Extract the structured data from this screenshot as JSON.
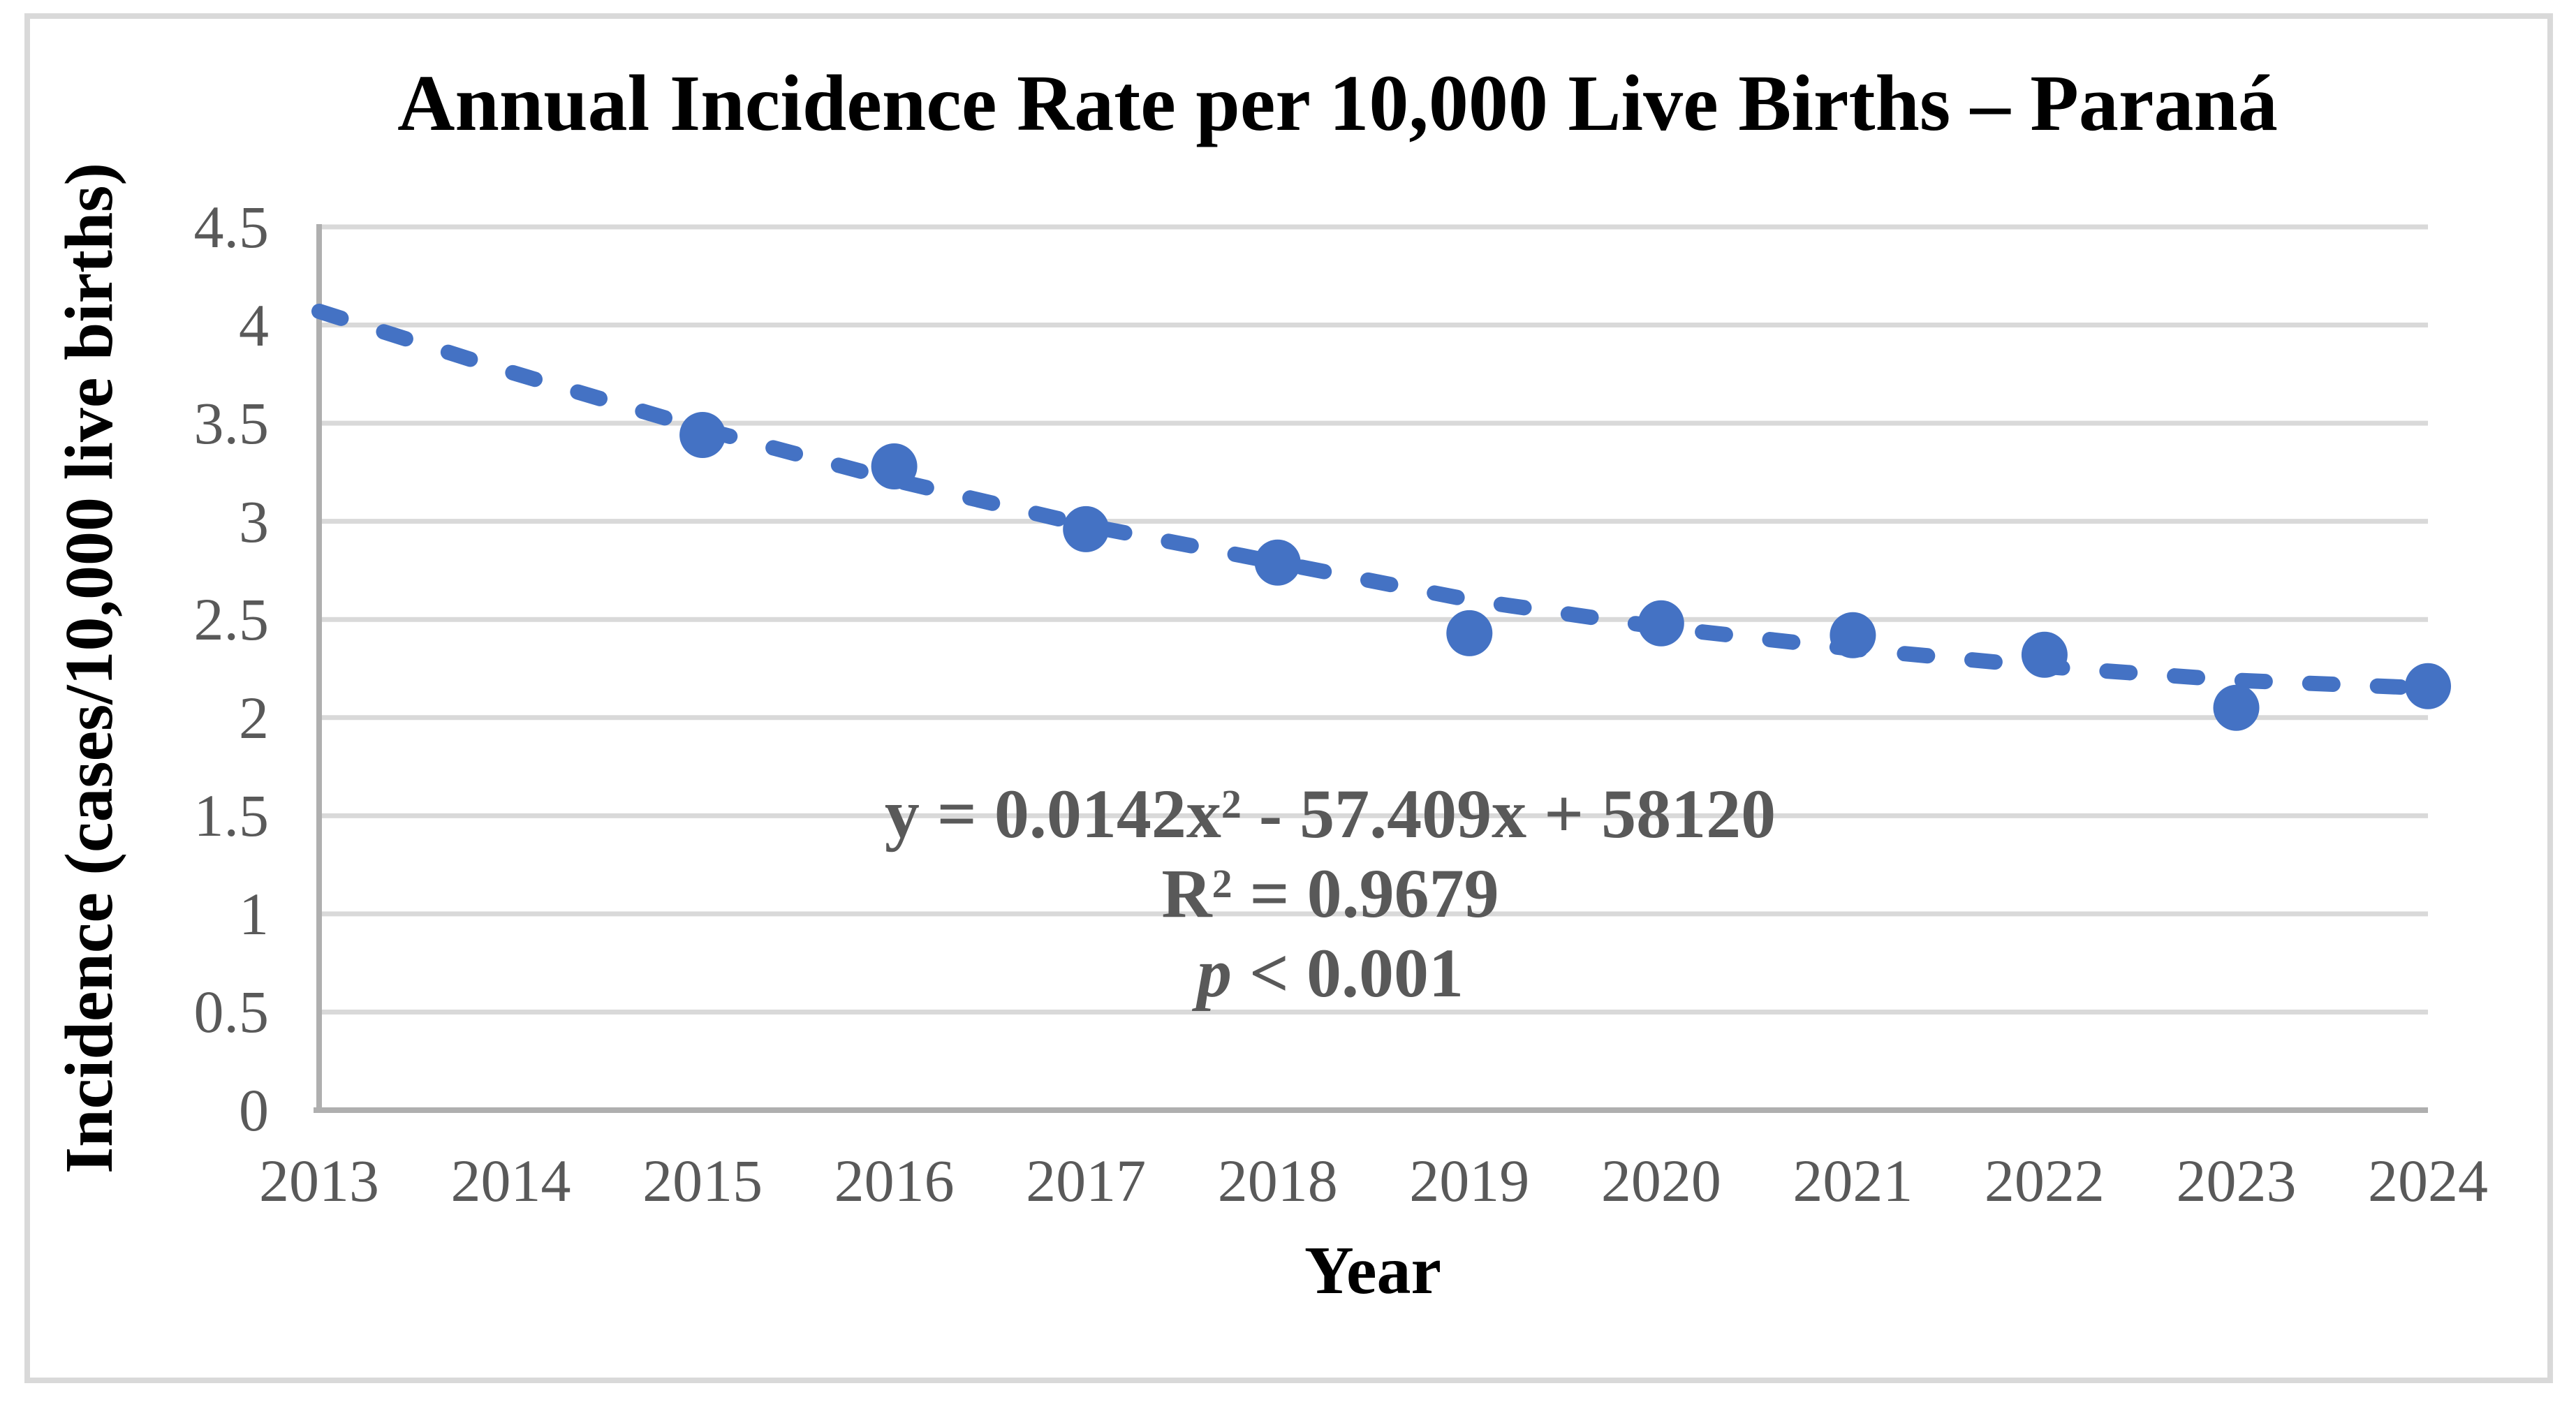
{
  "figure": {
    "title": "Annual Incidence Rate per 10,000 Live Births – Paraná",
    "x_axis_title": "Year",
    "y_axis_title": "Incidence (cases/10,000 live births)",
    "annotation": {
      "equation_prefix": "y = 0.0142x",
      "equation_sup": "2",
      "equation_suffix": " - 57.409x + 58120",
      "r2_prefix": "R",
      "r2_sup": "2",
      "r2_suffix": " = 0.9679",
      "p_italic": "p",
      "p_suffix": " < 0.001"
    },
    "colors": {
      "series": "#4472C4",
      "gridline": "#D9D9D9",
      "axis_line": "#AFAFAF",
      "tick_text": "#595959",
      "annotation_text": "#595959",
      "title_text": "#000000",
      "frame_border": "#D9D9D9",
      "background": "#FFFFFF"
    }
  },
  "chart_data": {
    "type": "scatter",
    "title": "Annual Incidence Rate per 10,000 Live Births – Paraná",
    "xlabel": "Year",
    "ylabel": "Incidence (cases/10,000 live births)",
    "x_ticks": [
      "2013",
      "2014",
      "2015",
      "2016",
      "2017",
      "2018",
      "2019",
      "2020",
      "2021",
      "2022",
      "2023",
      "2024"
    ],
    "y_ticks": [
      "0",
      "0.5",
      "1",
      "1.5",
      "2",
      "2.5",
      "3",
      "3.5",
      "4",
      "4.5"
    ],
    "xlim": [
      2013,
      2024
    ],
    "ylim": [
      0,
      4.5
    ],
    "grid": "horizontal",
    "legend": "none",
    "series": [
      {
        "name": "Annual incidence rate",
        "marker": "circle",
        "points": [
          {
            "year": 2015,
            "value": 3.44
          },
          {
            "year": 2016,
            "value": 3.28
          },
          {
            "year": 2017,
            "value": 2.96
          },
          {
            "year": 2018,
            "value": 2.79
          },
          {
            "year": 2019,
            "value": 2.43
          },
          {
            "year": 2020,
            "value": 2.48
          },
          {
            "year": 2021,
            "value": 2.42
          },
          {
            "year": 2022,
            "value": 2.32
          },
          {
            "year": 2023,
            "value": 2.05
          },
          {
            "year": 2024,
            "value": 2.16
          }
        ]
      }
    ],
    "trendline": {
      "style": "dashed",
      "shape": "quadratic",
      "equation": "y = 0.0142x² - 57.409x + 58120",
      "r_squared": "R² = 0.9679",
      "p_value": "p < 0.001",
      "samples": [
        {
          "year": 2013,
          "value": 4.07
        },
        {
          "year": 2014,
          "value": 3.76
        },
        {
          "year": 2015,
          "value": 3.47
        },
        {
          "year": 2016,
          "value": 3.21
        },
        {
          "year": 2017,
          "value": 2.98
        },
        {
          "year": 2018,
          "value": 2.79
        },
        {
          "year": 2019,
          "value": 2.6
        },
        {
          "year": 2020,
          "value": 2.46
        },
        {
          "year": 2021,
          "value": 2.35
        },
        {
          "year": 2022,
          "value": 2.26
        },
        {
          "year": 2023,
          "value": 2.19
        },
        {
          "year": 2024,
          "value": 2.15
        }
      ]
    }
  }
}
